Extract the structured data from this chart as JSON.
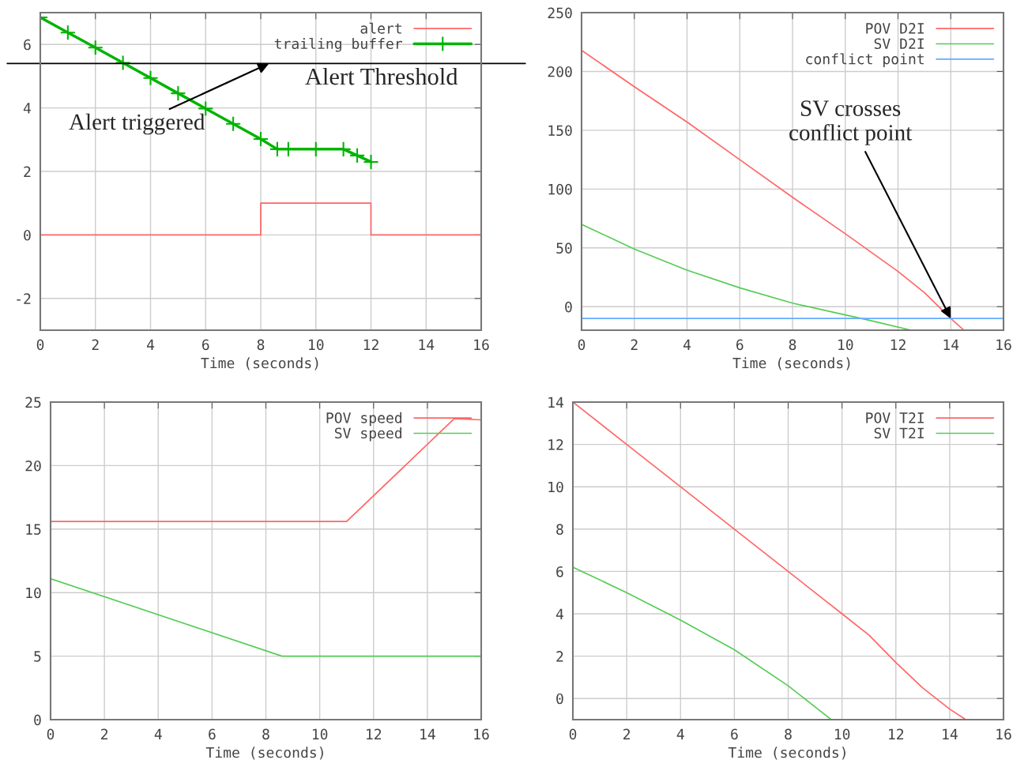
{
  "chart_data": [
    {
      "type": "line",
      "xlabel": "Time (seconds)",
      "xlim": [
        0,
        16
      ],
      "xticks": [
        0,
        2,
        4,
        6,
        8,
        10,
        12,
        14,
        16
      ],
      "ylim": [
        -3,
        7
      ],
      "yticks": [
        -2,
        0,
        2,
        4,
        6
      ],
      "grid": true,
      "legend": "top right",
      "series": [
        {
          "name": "alert",
          "type": "step",
          "color": "#ff6666",
          "x": [
            0,
            8,
            12,
            16
          ],
          "values": [
            0,
            1,
            0,
            0
          ]
        },
        {
          "name": "trailing buffer",
          "color": "#00b400",
          "marker": "cross",
          "x": [
            0,
            1,
            2,
            3,
            4,
            5,
            6,
            7,
            8,
            8.6,
            9,
            10,
            11,
            11.5,
            12
          ],
          "values": [
            6.85,
            6.37,
            5.9,
            5.42,
            4.94,
            4.46,
            3.98,
            3.5,
            3.02,
            2.7,
            2.7,
            2.7,
            2.7,
            2.5,
            2.3
          ]
        }
      ],
      "ref_lines": [
        {
          "axis": "y",
          "value": 5.4,
          "label": "Alert Threshold",
          "color": "#000000"
        }
      ],
      "annotations": [
        {
          "text": "Alert triggered",
          "x": 8.3,
          "y": 5.4
        }
      ]
    },
    {
      "type": "line",
      "xlabel": "Time (seconds)",
      "xlim": [
        0,
        16
      ],
      "xticks": [
        0,
        2,
        4,
        6,
        8,
        10,
        12,
        14,
        16
      ],
      "ylim": [
        -20,
        250
      ],
      "yticks": [
        0,
        50,
        100,
        150,
        200,
        250
      ],
      "grid": true,
      "legend": "top right",
      "series": [
        {
          "name": "POV D2I",
          "color": "#ff6666",
          "x": [
            0,
            2,
            4,
            6,
            8,
            10,
            12,
            13,
            14,
            14.5
          ],
          "values": [
            218,
            187,
            157,
            125,
            93,
            62,
            30,
            12,
            -10,
            -20
          ]
        },
        {
          "name": "SV D2I",
          "color": "#55cc55",
          "x": [
            0,
            2,
            4,
            6,
            8,
            10,
            11,
            12.5
          ],
          "values": [
            70,
            49,
            31,
            16,
            3,
            -7,
            -12,
            -20
          ]
        },
        {
          "name": "conflict point",
          "color": "#66aaff",
          "x": [
            0,
            16
          ],
          "values": [
            -10,
            -10
          ]
        }
      ],
      "annotations": [
        {
          "text": "SV crosses\nconflict point",
          "x": 14,
          "y": -10
        }
      ]
    },
    {
      "type": "line",
      "xlabel": "Time (seconds)",
      "xlim": [
        0,
        16
      ],
      "xticks": [
        0,
        2,
        4,
        6,
        8,
        10,
        12,
        14,
        16
      ],
      "ylim": [
        0,
        25
      ],
      "yticks": [
        0,
        5,
        10,
        15,
        20,
        25
      ],
      "grid": true,
      "legend": "top right",
      "series": [
        {
          "name": "POV speed",
          "color": "#ff6666",
          "x": [
            0,
            11,
            15,
            16
          ],
          "values": [
            15.6,
            15.6,
            23.7,
            23.6
          ]
        },
        {
          "name": "SV speed",
          "color": "#55cc55",
          "x": [
            0,
            8.6,
            16
          ],
          "values": [
            11.1,
            5.0,
            5.0
          ]
        }
      ]
    },
    {
      "type": "line",
      "xlabel": "Time (seconds)",
      "xlim": [
        0,
        16
      ],
      "xticks": [
        0,
        2,
        4,
        6,
        8,
        10,
        12,
        14,
        16
      ],
      "ylim": [
        -1,
        14
      ],
      "yticks": [
        0,
        2,
        4,
        6,
        8,
        10,
        12,
        14
      ],
      "grid": true,
      "legend": "top right",
      "series": [
        {
          "name": "POV T2I",
          "color": "#ff6666",
          "x": [
            0,
            2,
            4,
            6,
            8,
            10,
            11,
            12,
            13,
            14,
            14.6
          ],
          "values": [
            14,
            12,
            10,
            8,
            6,
            4,
            3,
            1.7,
            0.5,
            -0.5,
            -1
          ]
        },
        {
          "name": "SV T2I",
          "color": "#55cc55",
          "x": [
            0,
            2,
            4,
            6,
            8,
            9,
            9.6
          ],
          "values": [
            6.2,
            5,
            3.7,
            2.3,
            0.6,
            -0.4,
            -1
          ]
        }
      ]
    }
  ]
}
